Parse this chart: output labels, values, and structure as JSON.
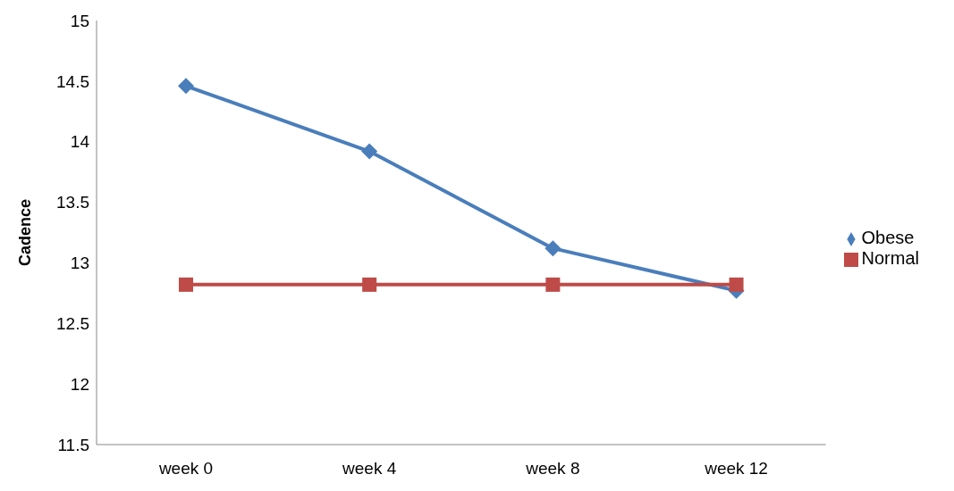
{
  "chart_data": {
    "type": "line",
    "ylabel": "Cadence",
    "categories": [
      "week 0",
      "week 4",
      "week 8",
      "week 12"
    ],
    "series": [
      {
        "name": "Obese",
        "color": "#4a7ebb",
        "values": [
          14.46,
          13.92,
          13.12,
          12.77
        ],
        "marker": "diamond"
      },
      {
        "name": "Normal",
        "color": "#be4b48",
        "values": [
          12.82,
          12.82,
          12.82,
          12.82
        ],
        "marker": "square"
      }
    ],
    "ylim": [
      11.5,
      15
    ],
    "yticks": [
      11.5,
      12,
      12.5,
      13,
      13.5,
      14,
      14.5,
      15
    ],
    "grid": false,
    "legend": "right"
  }
}
